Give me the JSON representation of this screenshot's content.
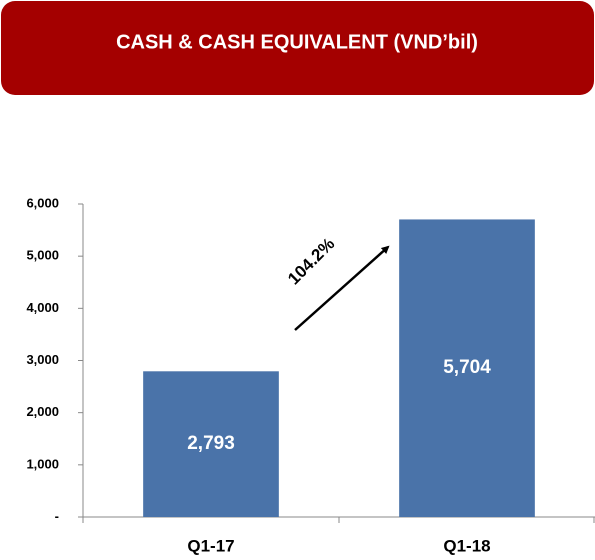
{
  "chart_data": {
    "type": "bar",
    "title": "CASH & CASH EQUIVALENT (VND’bil)",
    "categories": [
      "Q1-17",
      "Q1-18"
    ],
    "values": [
      2793,
      5704
    ],
    "value_labels": [
      "2,793",
      "5,704"
    ],
    "color": "#4a73a9",
    "title_color": "#a40000",
    "ylim": [
      0,
      6000
    ],
    "yticks": [
      {
        "value": 0,
        "label": "-"
      },
      {
        "value": 1000,
        "label": "1,000"
      },
      {
        "value": 2000,
        "label": "2,000"
      },
      {
        "value": 3000,
        "label": "3,000"
      },
      {
        "value": 4000,
        "label": "4,000"
      },
      {
        "value": 5000,
        "label": "5,000"
      },
      {
        "value": 6000,
        "label": "6,000"
      }
    ],
    "annotation": "104.2%",
    "grid": false
  }
}
